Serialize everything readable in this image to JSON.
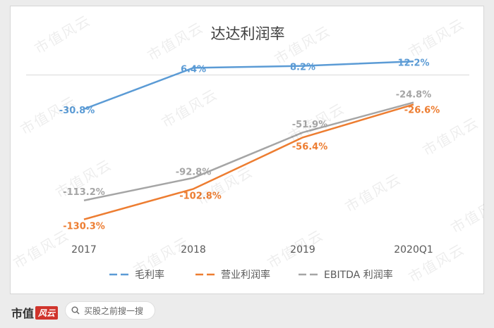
{
  "chart_data": {
    "type": "line",
    "title": "达达利润率",
    "categories": [
      "2017",
      "2018",
      "2019",
      "2020Q1"
    ],
    "series": [
      {
        "name": "毛利率",
        "color": "#5b9bd5",
        "values": [
          -30.8,
          6.4,
          8.2,
          12.2
        ],
        "labels": [
          "-30.8%",
          "6.4%",
          "8.2%",
          "12.2%"
        ]
      },
      {
        "name": "营业利润率",
        "color": "#ed7d31",
        "values": [
          -130.3,
          -102.8,
          -56.4,
          -26.6
        ],
        "labels": [
          "-130.3%",
          "-102.8%",
          "-56.4%",
          "-26.6%"
        ]
      },
      {
        "name": "EBITDA 利润率",
        "color": "#a5a5a5",
        "values": [
          -113.2,
          -92.8,
          -51.9,
          -24.8
        ],
        "labels": [
          "-113.2%",
          "-92.8%",
          "-51.9%",
          "-24.8%"
        ]
      }
    ],
    "ylim": [
      -140,
      20
    ],
    "zero_line": 0,
    "legend": "bottom"
  },
  "watermark": "市值风云",
  "footer": {
    "brand_text": "市值",
    "brand_logo_text": "风云",
    "search_placeholder": "买股之前搜一搜"
  }
}
